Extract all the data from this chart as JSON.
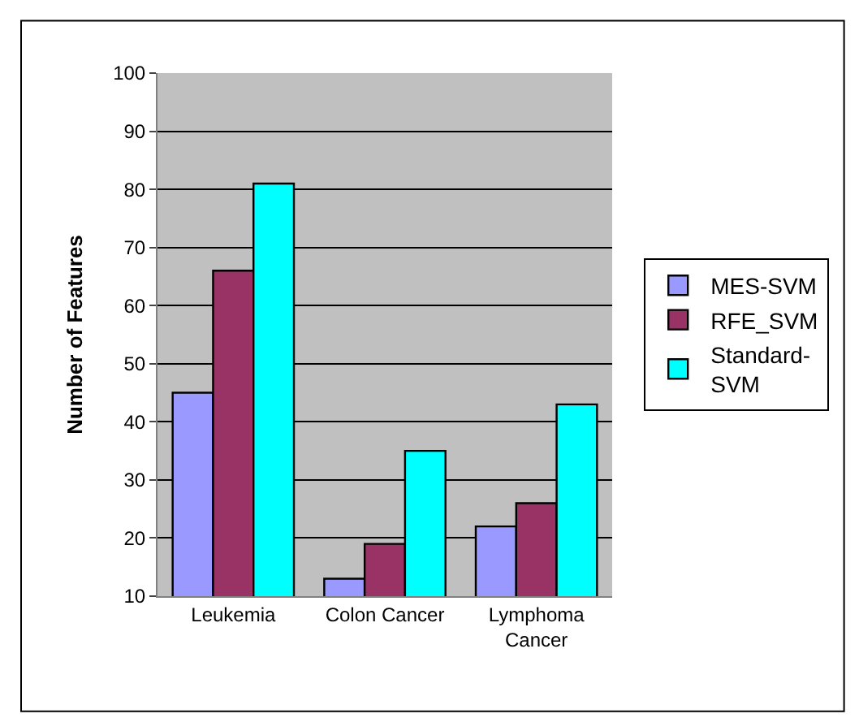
{
  "chart_data": {
    "type": "bar",
    "ylabel": "Number of Features",
    "categories": [
      "Leukemia",
      "Colon Cancer",
      "Lymphoma Cancer"
    ],
    "series": [
      {
        "name": "MES-SVM",
        "color": "#9999ff",
        "values": [
          45,
          13,
          22
        ]
      },
      {
        "name": "RFE_SVM",
        "color": "#993366",
        "values": [
          66,
          19,
          26
        ]
      },
      {
        "name": "Standard-SVM",
        "color": "#00ffff",
        "values": [
          81,
          35,
          43
        ]
      }
    ],
    "ylim": [
      10,
      100
    ],
    "yticks": [
      10,
      20,
      30,
      40,
      50,
      60,
      70,
      80,
      90,
      100
    ],
    "grid": "y",
    "legend": "right"
  }
}
